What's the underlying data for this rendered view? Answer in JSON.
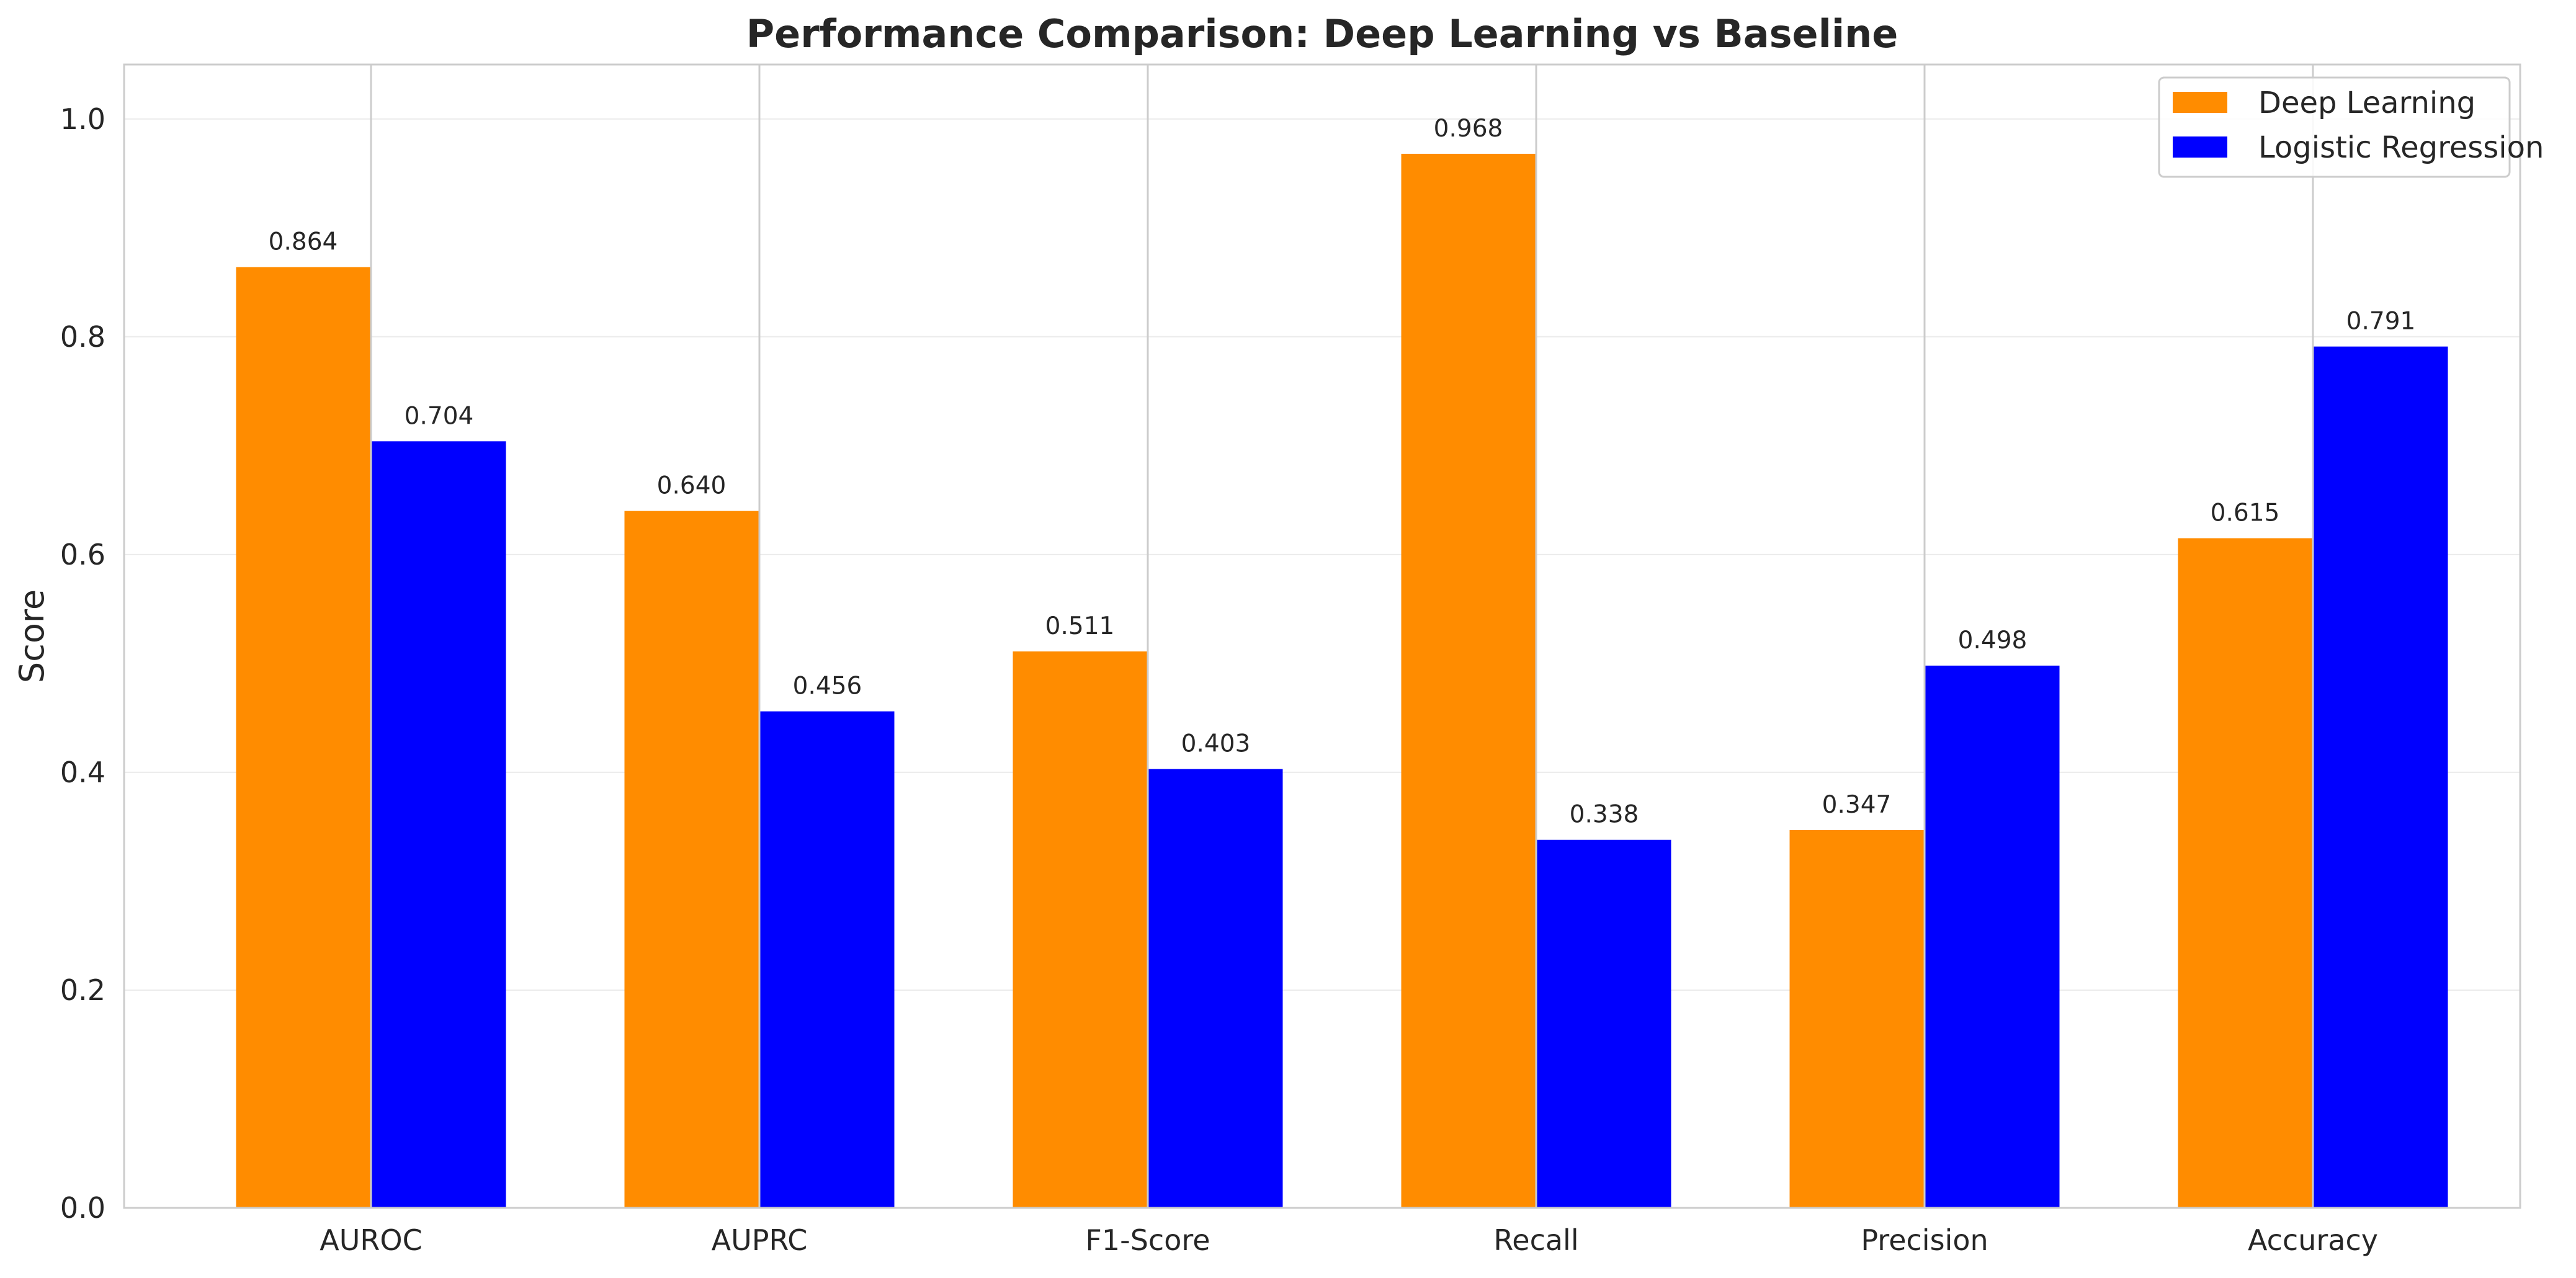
{
  "chart_data": {
    "type": "bar",
    "title": "Performance Comparison: Deep Learning vs Baseline",
    "xlabel": "",
    "ylabel": "Score",
    "ylim": [
      0,
      1.05
    ],
    "yticks": [
      0.0,
      0.2,
      0.4,
      0.6,
      0.8,
      1.0
    ],
    "ytick_labels": [
      "0.0",
      "0.2",
      "0.4",
      "0.6",
      "0.8",
      "1.0"
    ],
    "categories": [
      "AUROC",
      "AUPRC",
      "F1-Score",
      "Recall",
      "Precision",
      "Accuracy"
    ],
    "series": [
      {
        "name": "Deep Learning",
        "color": "#ff8c00",
        "values": [
          0.864,
          0.64,
          0.511,
          0.968,
          0.347,
          0.615
        ],
        "labels": [
          "0.864",
          "0.640",
          "0.511",
          "0.968",
          "0.347",
          "0.615"
        ]
      },
      {
        "name": "Logistic Regression",
        "color": "#0000ff",
        "values": [
          0.704,
          0.456,
          0.403,
          0.338,
          0.498,
          0.791
        ],
        "labels": [
          "0.704",
          "0.456",
          "0.403",
          "0.338",
          "0.498",
          "0.791"
        ]
      }
    ],
    "grid": true,
    "legend_position": "top-right"
  }
}
